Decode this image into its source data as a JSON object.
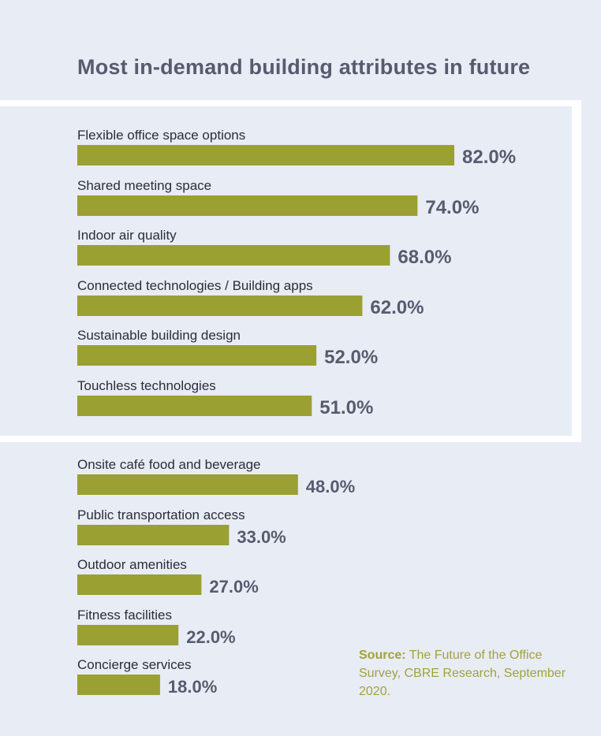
{
  "chart_data": {
    "type": "bar",
    "orientation": "horizontal",
    "title": "Most in-demand building attributes in future",
    "categories": [
      "Flexible office space options",
      "Shared meeting space",
      "Indoor air quality",
      "Connected technologies / Building apps",
      "Sustainable building design",
      "Touchless technologies",
      "Onsite café food and beverage",
      "Public transportation access",
      "Outdoor amenities",
      "Fitness facilities",
      "Concierge services"
    ],
    "values": [
      82.0,
      74.0,
      68.0,
      62.0,
      52.0,
      51.0,
      48.0,
      33.0,
      27.0,
      22.0,
      18.0
    ],
    "value_labels": [
      "82.0%",
      "74.0%",
      "68.0%",
      "62.0%",
      "52.0%",
      "51.0%",
      "48.0%",
      "33.0%",
      "27.0%",
      "22.0%",
      "18.0%"
    ],
    "highlighted_top_count": 6,
    "bar_color": "#9aa031",
    "xlim": [
      0,
      100
    ],
    "grid": false
  },
  "source": {
    "label": "Source:",
    "text": "The Future of the Office Survey, CBRE Research, September 2020."
  },
  "colors": {
    "background": "#e8ecf5",
    "highlight_border": "#ffffff",
    "title": "#575b6e",
    "source_text": "#9fa33a"
  }
}
